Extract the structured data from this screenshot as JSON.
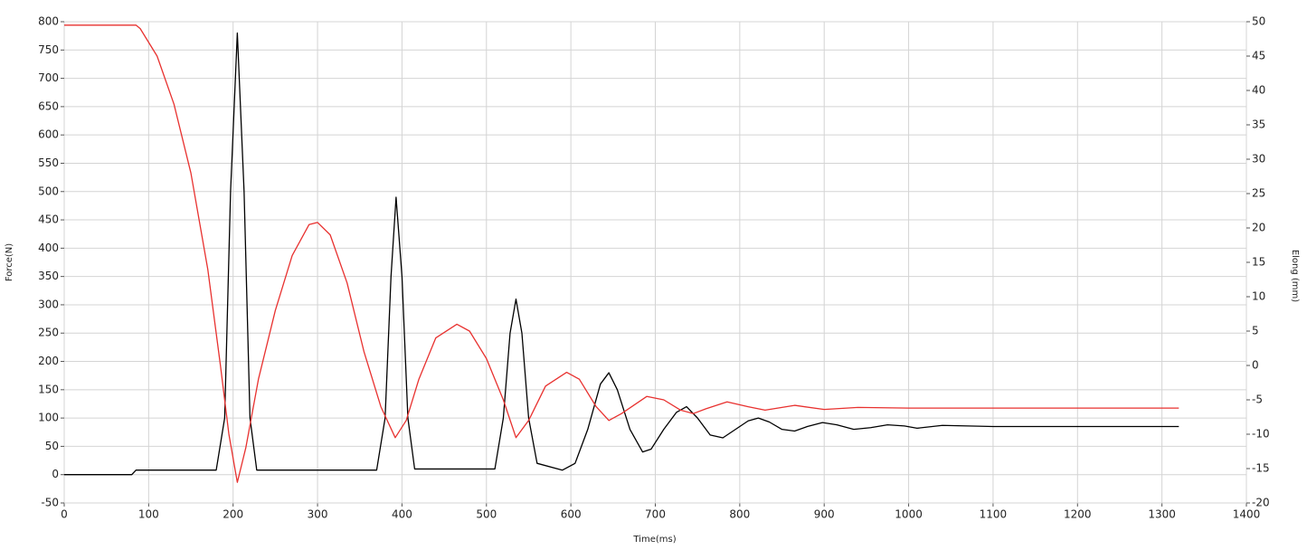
{
  "chart_data": {
    "type": "line",
    "x_label": "Time(ms)",
    "y_label": "Force(N)",
    "y2_label": "Elong (mm)",
    "xlim": [
      0,
      1400
    ],
    "xticks": [
      0,
      100,
      200,
      300,
      400,
      500,
      600,
      700,
      800,
      900,
      1000,
      1100,
      1200,
      1300,
      1400
    ],
    "ylim": [
      -50,
      800
    ],
    "yticks": [
      -50,
      0,
      50,
      100,
      150,
      200,
      250,
      300,
      350,
      400,
      450,
      500,
      550,
      600,
      650,
      700,
      750,
      800
    ],
    "y2lim": [
      -20,
      50
    ],
    "y2ticks": [
      -20,
      -15,
      -10,
      -5,
      0,
      5,
      10,
      15,
      20,
      25,
      30,
      35,
      40,
      45,
      50
    ],
    "grid": true,
    "series": [
      {
        "color": "#000000",
        "axis": "y",
        "x": [
          0,
          80,
          85,
          180,
          190,
          197,
          205,
          213,
          220,
          228,
          370,
          380,
          387,
          393,
          400,
          407,
          415,
          510,
          520,
          528,
          535,
          542,
          550,
          560,
          590,
          605,
          620,
          635,
          645,
          655,
          670,
          685,
          695,
          710,
          725,
          737,
          750,
          765,
          780,
          795,
          810,
          822,
          835,
          850,
          865,
          880,
          898,
          915,
          935,
          955,
          975,
          995,
          1010,
          1040,
          1100,
          1200,
          1320
        ],
        "values": [
          0,
          0,
          8,
          8,
          100,
          500,
          780,
          500,
          100,
          8,
          8,
          100,
          350,
          490,
          350,
          100,
          10,
          10,
          100,
          250,
          310,
          250,
          100,
          20,
          8,
          20,
          80,
          160,
          180,
          150,
          80,
          40,
          45,
          80,
          110,
          120,
          100,
          70,
          65,
          80,
          95,
          100,
          93,
          80,
          77,
          85,
          92,
          88,
          80,
          83,
          88,
          86,
          82,
          87,
          85,
          85,
          85
        ]
      },
      {
        "color": "#e8312f",
        "axis": "y2",
        "x": [
          0,
          85,
          90,
          110,
          130,
          150,
          170,
          185,
          195,
          205,
          215,
          230,
          250,
          270,
          290,
          300,
          315,
          335,
          355,
          375,
          392,
          405,
          420,
          440,
          465,
          480,
          500,
          520,
          535,
          550,
          570,
          595,
          610,
          630,
          645,
          660,
          690,
          710,
          730,
          745,
          760,
          785,
          810,
          830,
          865,
          900,
          940,
          1000,
          1320
        ],
        "values": [
          49.5,
          49.5,
          49,
          45,
          38,
          28,
          14,
          0,
          -10,
          -17,
          -12,
          -2,
          8,
          16,
          20.5,
          20.8,
          19,
          12,
          2,
          -6,
          -10.5,
          -8,
          -2,
          4,
          6,
          5,
          1,
          -5,
          -10.5,
          -8,
          -3,
          -1,
          -2,
          -6,
          -8,
          -7,
          -4.5,
          -5,
          -6.5,
          -7,
          -6.3,
          -5.3,
          -6,
          -6.5,
          -5.8,
          -6.4,
          -6.1,
          -6.2,
          -6.2
        ]
      }
    ]
  }
}
